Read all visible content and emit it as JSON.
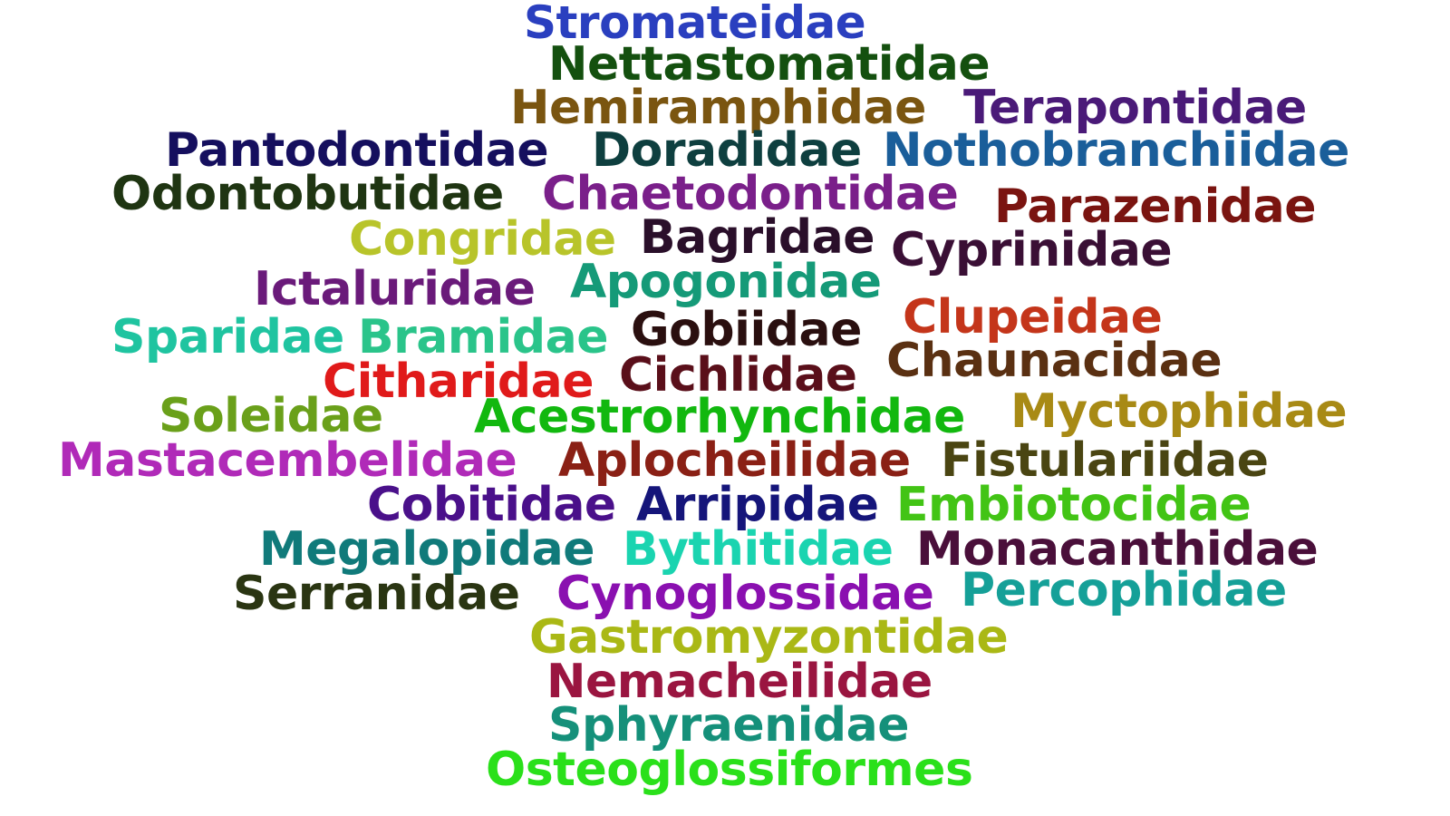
{
  "words": [
    {
      "text": "Stromateidae",
      "color": "#2a3fbf"
    },
    {
      "text": "Nettastomatidae",
      "color": "#14500f"
    },
    {
      "text": "Hemiramphidae",
      "color": "#7a5510"
    },
    {
      "text": "Terapontidae",
      "color": "#4a1a78"
    },
    {
      "text": "Pantodontidae",
      "color": "#150f5e"
    },
    {
      "text": "Doradidae",
      "color": "#0e3f3f"
    },
    {
      "text": "Nothobranchiidae",
      "color": "#1a5e9a"
    },
    {
      "text": "Odontobutidae",
      "color": "#1f3512"
    },
    {
      "text": "Chaetodontidae",
      "color": "#7a1f8a"
    },
    {
      "text": "Parazenidae",
      "color": "#7a1410"
    },
    {
      "text": "Congridae",
      "color": "#b8c42a"
    },
    {
      "text": "Bagridae",
      "color": "#2a0f2a"
    },
    {
      "text": "Cyprinidae",
      "color": "#3a0f35"
    },
    {
      "text": "Ictaluridae",
      "color": "#6a1a7a"
    },
    {
      "text": "Apogonidae",
      "color": "#159a78"
    },
    {
      "text": "Clupeidae",
      "color": "#c4351a"
    },
    {
      "text": "Sparidae",
      "color": "#1fc4a0"
    },
    {
      "text": "Bramidae",
      "color": "#2ac48a"
    },
    {
      "text": "Gobiidae",
      "color": "#2a0f0f"
    },
    {
      "text": "Chaunacidae",
      "color": "#5a3012"
    },
    {
      "text": "Citharidae",
      "color": "#e01a1a"
    },
    {
      "text": "Cichlidae",
      "color": "#5a0f1a"
    },
    {
      "text": "Soleidae",
      "color": "#6aa01a"
    },
    {
      "text": "Acestrorhynchidae",
      "color": "#12b80f"
    },
    {
      "text": "Myctophidae",
      "color": "#a88a15"
    },
    {
      "text": "Mastacembelidae",
      "color": "#b02ab8"
    },
    {
      "text": "Aplocheilidae",
      "color": "#8a2015"
    },
    {
      "text": "Fistulariidae",
      "color": "#4a4512"
    },
    {
      "text": "Cobitidae",
      "color": "#4a108a"
    },
    {
      "text": "Arripidae",
      "color": "#15157a"
    },
    {
      "text": "Embiotocidae",
      "color": "#42c415"
    },
    {
      "text": "Megalopidae",
      "color": "#107a7a"
    },
    {
      "text": "Bythitidae",
      "color": "#1ad4b0"
    },
    {
      "text": "Monacanthidae",
      "color": "#4a0f3a"
    },
    {
      "text": "Serranidae",
      "color": "#2a3512"
    },
    {
      "text": "Cynoglossidae",
      "color": "#8a10b0"
    },
    {
      "text": "Percophidae",
      "color": "#15a098"
    },
    {
      "text": "Gastromyzontidae",
      "color": "#aab815"
    },
    {
      "text": "Nemacheilidae",
      "color": "#9a1540"
    },
    {
      "text": "Sphyraenidae",
      "color": "#15907a"
    },
    {
      "text": "Osteoglossiformes",
      "color": "#2ae01a"
    }
  ]
}
